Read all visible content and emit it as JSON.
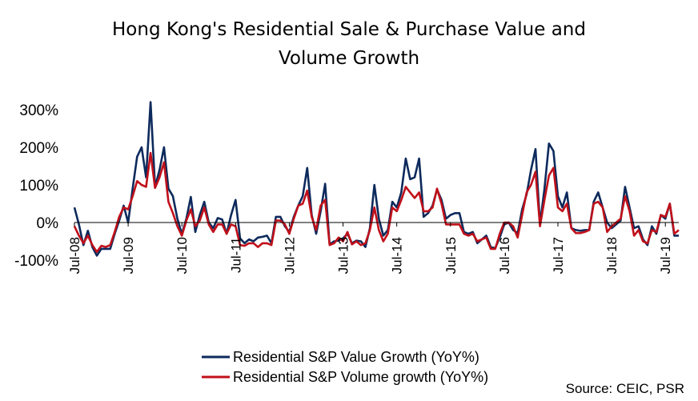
{
  "chart_data": {
    "type": "line",
    "title_line1": "Hong Kong's Residential Sale & Purchase Value and",
    "title_line2": "Volume Growth",
    "source": "Source: CEIC, PSR",
    "ylim": [
      -100,
      300
    ],
    "yticks": [
      {
        "value": 300,
        "label": "300%"
      },
      {
        "value": 200,
        "label": "200%"
      },
      {
        "value": 100,
        "label": "100%"
      },
      {
        "value": 0,
        "label": "0%"
      },
      {
        "value": -100,
        "label": "-100%"
      }
    ],
    "x_start_month": "Jul-08",
    "xticks": [
      {
        "index": 0,
        "label": "Jul-08"
      },
      {
        "index": 12,
        "label": "Jul-09"
      },
      {
        "index": 24,
        "label": "Jul-10"
      },
      {
        "index": 36,
        "label": "Jul-11"
      },
      {
        "index": 48,
        "label": "Jul-12"
      },
      {
        "index": 60,
        "label": "Jul-13"
      },
      {
        "index": 72,
        "label": "Jul-14"
      },
      {
        "index": 84,
        "label": "Jul-15"
      },
      {
        "index": 96,
        "label": "Jul-16"
      },
      {
        "index": 108,
        "label": "Jul-17"
      },
      {
        "index": 120,
        "label": "Jul-18"
      },
      {
        "index": 132,
        "label": "Jul-19"
      }
    ],
    "legend_position": "bottom",
    "grid": false,
    "series": [
      {
        "name": "Residential S&P Value Growth (YoY%)",
        "color": "#0d2a5c",
        "values": [
          40,
          -5,
          -60,
          -22,
          -65,
          -88,
          -70,
          -70,
          -70,
          -30,
          5,
          45,
          0,
          90,
          175,
          200,
          120,
          320,
          95,
          140,
          200,
          90,
          70,
          10,
          -30,
          10,
          68,
          -25,
          20,
          55,
          0,
          -15,
          12,
          8,
          -30,
          20,
          60,
          -42,
          -55,
          -45,
          -50,
          -40,
          -38,
          -35,
          -55,
          15,
          15,
          -10,
          -25,
          15,
          45,
          70,
          145,
          20,
          -30,
          30,
          103,
          -58,
          -50,
          -48,
          -42,
          -30,
          -55,
          -48,
          -50,
          -65,
          -15,
          100,
          10,
          -35,
          -20,
          55,
          40,
          80,
          170,
          115,
          120,
          170,
          15,
          25,
          45,
          88,
          60,
          10,
          20,
          25,
          25,
          -25,
          -30,
          -25,
          -55,
          -45,
          -35,
          -65,
          -68,
          -40,
          -5,
          0,
          -20,
          -28,
          35,
          75,
          140,
          195,
          -5,
          90,
          210,
          190,
          70,
          40,
          80,
          -15,
          -20,
          -22,
          -20,
          -20,
          55,
          80,
          40,
          0,
          -15,
          -5,
          5,
          95,
          40,
          -15,
          -10,
          -45,
          -60,
          -10,
          -30,
          20,
          10,
          50,
          -35,
          -35
        ],
        "value_units": "%"
      },
      {
        "name": "Residential S&P Volume growth (YoY%)",
        "color": "#c0101a",
        "values": [
          -10,
          -35,
          -55,
          -35,
          -60,
          -78,
          -62,
          -65,
          -60,
          -25,
          15,
          40,
          35,
          70,
          110,
          100,
          95,
          185,
          92,
          120,
          160,
          55,
          25,
          -10,
          -35,
          5,
          35,
          -10,
          5,
          40,
          -5,
          -25,
          -5,
          -5,
          -30,
          -5,
          -10,
          -60,
          -62,
          -55,
          -55,
          -65,
          -55,
          -55,
          -60,
          5,
          5,
          -5,
          -30,
          10,
          45,
          50,
          85,
          15,
          -20,
          45,
          60,
          -60,
          -55,
          -40,
          -50,
          -25,
          -58,
          -50,
          -60,
          -55,
          -20,
          40,
          -20,
          -50,
          -30,
          40,
          30,
          60,
          95,
          80,
          65,
          80,
          30,
          30,
          40,
          90,
          50,
          -5,
          -5,
          -5,
          -5,
          -30,
          -35,
          -30,
          -50,
          -45,
          -40,
          -70,
          -70,
          -30,
          0,
          0,
          -10,
          -40,
          20,
          80,
          100,
          135,
          -10,
          60,
          125,
          145,
          40,
          30,
          50,
          -15,
          -28,
          -28,
          -25,
          -20,
          50,
          55,
          40,
          -25,
          -10,
          0,
          10,
          70,
          30,
          -35,
          -20,
          -50,
          -55,
          -20,
          -25,
          20,
          15,
          50,
          -30,
          -20
        ],
        "value_units": "%"
      }
    ]
  }
}
